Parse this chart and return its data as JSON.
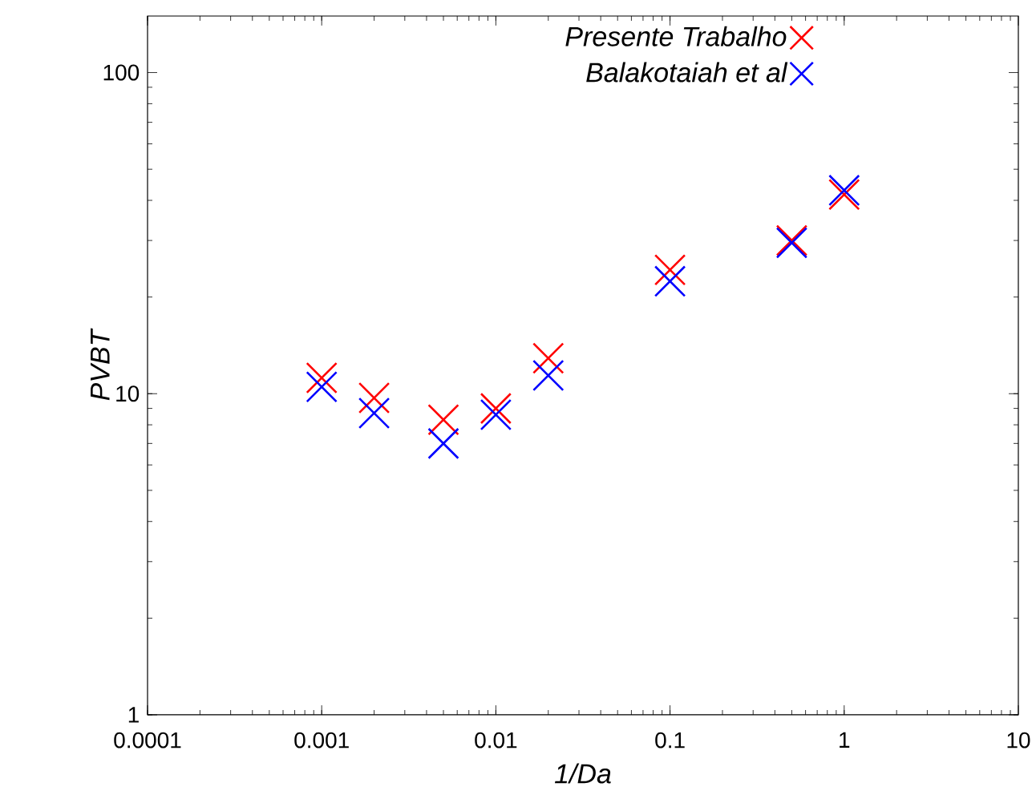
{
  "chart_data": {
    "type": "scatter",
    "xlabel": "1/Da",
    "ylabel": "PVBT",
    "log": "xy",
    "marker": "cross",
    "legend": "top right",
    "xlim": [
      0.0001,
      10
    ],
    "ylim": [
      1,
      150
    ],
    "xticks": [
      0.0001,
      0.001,
      0.01,
      0.1,
      1,
      10
    ],
    "yticks": [
      1,
      10,
      100
    ],
    "series": [
      {
        "name": "Presente Trabalho",
        "color": "#ff0000",
        "x": [
          0.001,
          0.002,
          0.005,
          0.01,
          0.02,
          0.1,
          0.5,
          1
        ],
        "values": [
          11.2,
          9.7,
          8.3,
          9.0,
          12.9,
          24.3,
          30.0,
          41.7
        ]
      },
      {
        "name": "Balakotaiah et al",
        "color": "#0000ff",
        "x": [
          0.001,
          0.002,
          0.005,
          0.01,
          0.02,
          0.1,
          0.5,
          1
        ],
        "values": [
          10.5,
          8.7,
          7.0,
          8.6,
          11.4,
          22.4,
          29.5,
          43.0
        ]
      }
    ]
  }
}
